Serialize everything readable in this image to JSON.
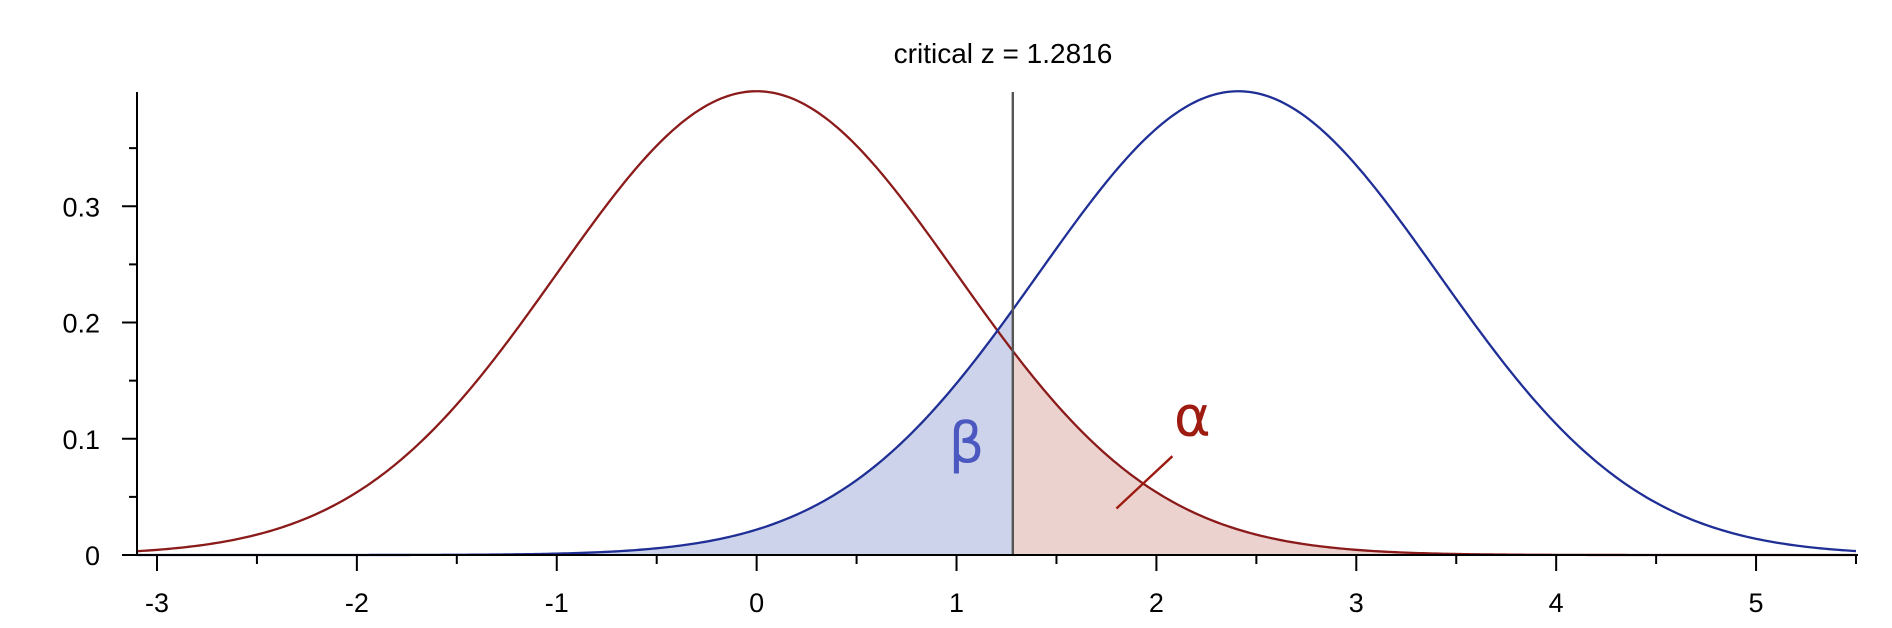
{
  "chart_data": {
    "type": "line",
    "title": "critical z = 1.2816",
    "xlabel": "",
    "ylabel": "",
    "xlim": [
      -3.1,
      5.5
    ],
    "ylim": [
      0,
      0.4
    ],
    "x_ticks": [
      -3,
      -2,
      -1,
      0,
      1,
      2,
      3,
      4,
      5
    ],
    "y_ticks": [
      0,
      0.1,
      0.2,
      0.3
    ],
    "x_tick_labels": [
      "-3",
      "-2",
      "-1",
      "0",
      "1",
      "2",
      "3",
      "4",
      "5"
    ],
    "y_tick_labels": [
      "0",
      "0.1",
      "0.2",
      "0.3"
    ],
    "critical_z": 1.2816,
    "series": [
      {
        "kind": "normal-pdf",
        "mean": 0,
        "sd": 1,
        "color": "#8b1a1a"
      },
      {
        "kind": "normal-pdf",
        "mean": 2.41,
        "sd": 1,
        "color": "#1f2f96"
      }
    ],
    "shaded_regions": [
      {
        "label": "β",
        "under_series": 1,
        "from": -3.1,
        "to": 1.2816,
        "fill": "#cdd3ea",
        "label_color": "#4a58c0"
      },
      {
        "label": "α",
        "under_series": 0,
        "from": 1.2816,
        "to": 5.5,
        "fill": "#ecd2cf",
        "label_color": "#9e1b12"
      }
    ],
    "grid": false,
    "legend": "none"
  }
}
